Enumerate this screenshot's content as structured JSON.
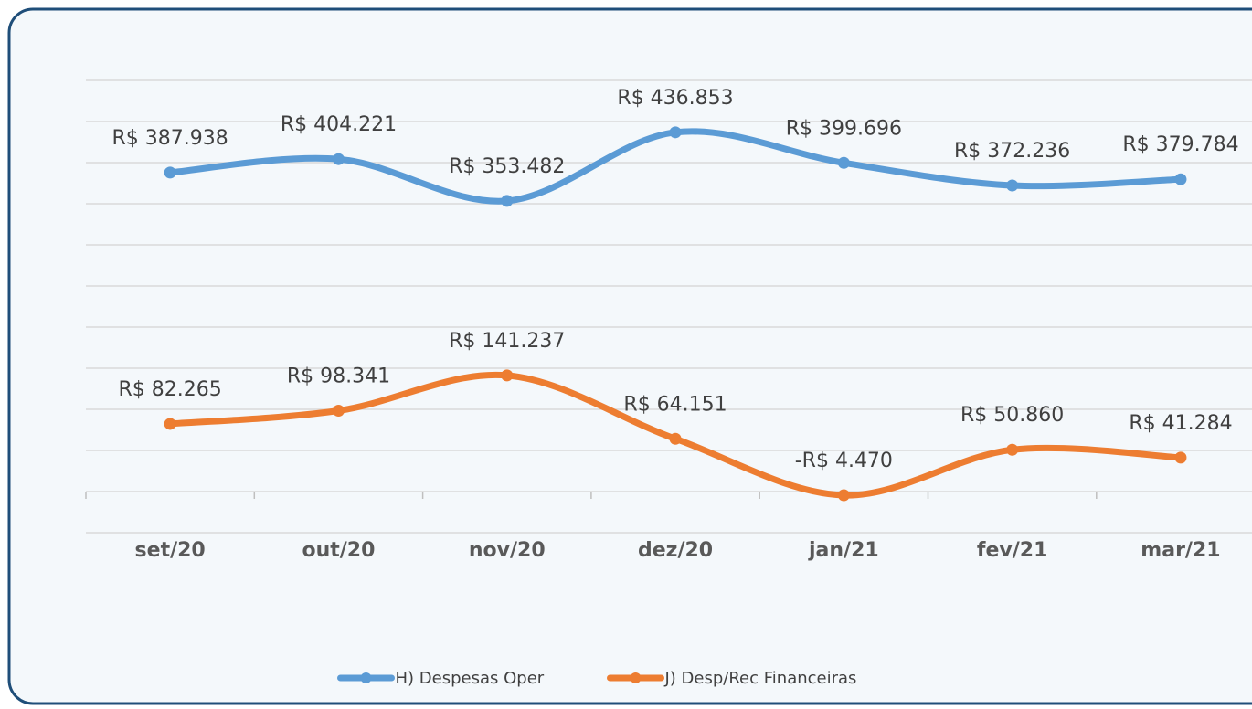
{
  "chart_data": {
    "type": "line",
    "categories": [
      "set/20",
      "out/20",
      "nov/20",
      "dez/20",
      "jan/21",
      "fev/21",
      "mar/21"
    ],
    "series": [
      {
        "name": "H) Despesas Oper",
        "color": "#5b9bd5",
        "values": [
          387938,
          404221,
          353482,
          436853,
          399696,
          372236,
          379784
        ],
        "value_labels": [
          "R$ 387.938",
          "R$ 404.221",
          "R$ 353.482",
          "R$ 436.853",
          "R$ 399.696",
          "R$ 372.236",
          "R$ 379.784"
        ]
      },
      {
        "name": "J) Desp/Rec Financeiras",
        "color": "#ed7d31",
        "values": [
          82265,
          98341,
          141237,
          64151,
          -4470,
          50860,
          41284
        ],
        "value_labels": [
          "R$ 82.265",
          "R$ 98.341",
          "R$ 141.237",
          "R$ 64.151",
          "-R$ 4.470",
          "R$ 50.860",
          "R$ 41.284"
        ]
      }
    ],
    "ylim": [
      -50000,
      500000
    ],
    "yticks": [
      -50000,
      0,
      50000,
      100000,
      150000,
      200000,
      250000,
      300000,
      350000,
      400000,
      450000,
      500000
    ],
    "grid": true,
    "smooth": true,
    "legend": "bottom"
  }
}
